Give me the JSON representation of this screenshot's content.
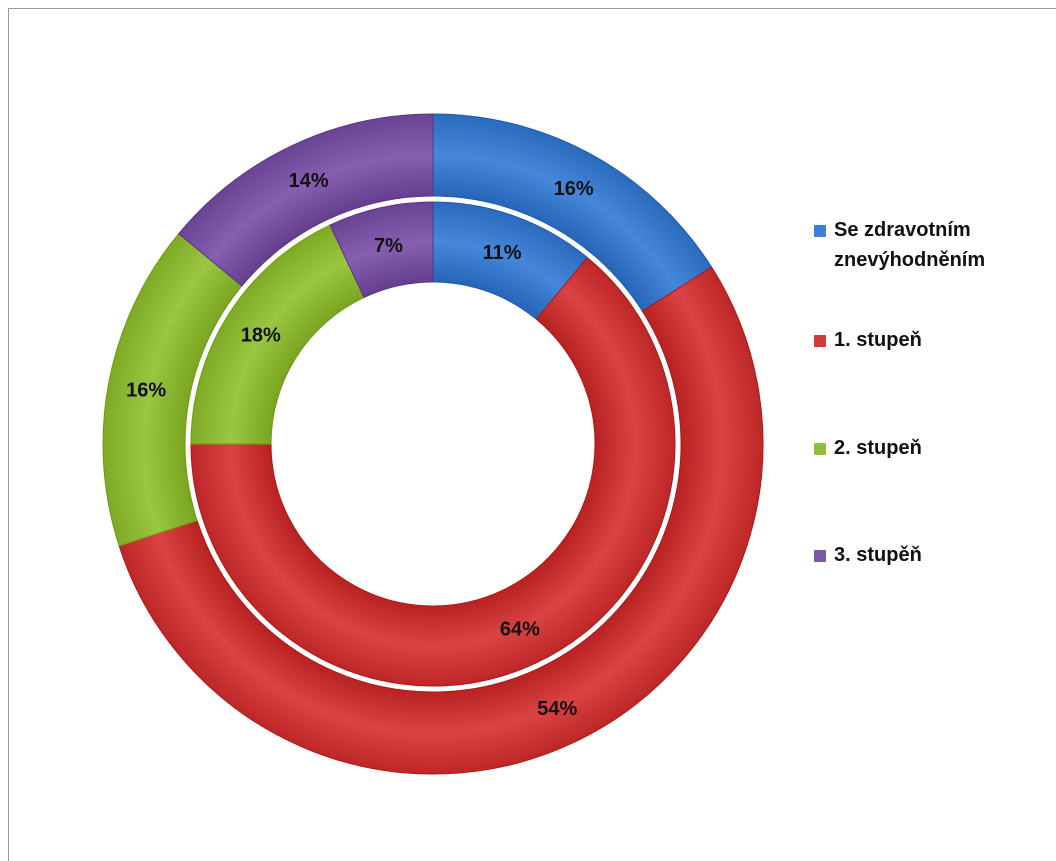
{
  "chart_data": {
    "type": "doughnut",
    "categories": [
      "Se zdravotním znevýhodněním",
      "1. stupeň",
      "2. stupeň",
      "3. stupěň"
    ],
    "colors": [
      "#3f7fd1",
      "#d23b3b",
      "#93be3a",
      "#7f57a8"
    ],
    "series": [
      {
        "values": [
          16,
          54,
          16,
          14
        ],
        "labels": [
          "16%",
          "54%",
          "16%",
          "14%"
        ]
      },
      {
        "values": [
          11,
          64,
          18,
          7
        ],
        "labels": [
          "11%",
          "64%",
          "18%",
          "7%"
        ]
      }
    ],
    "legend_position": "right"
  }
}
